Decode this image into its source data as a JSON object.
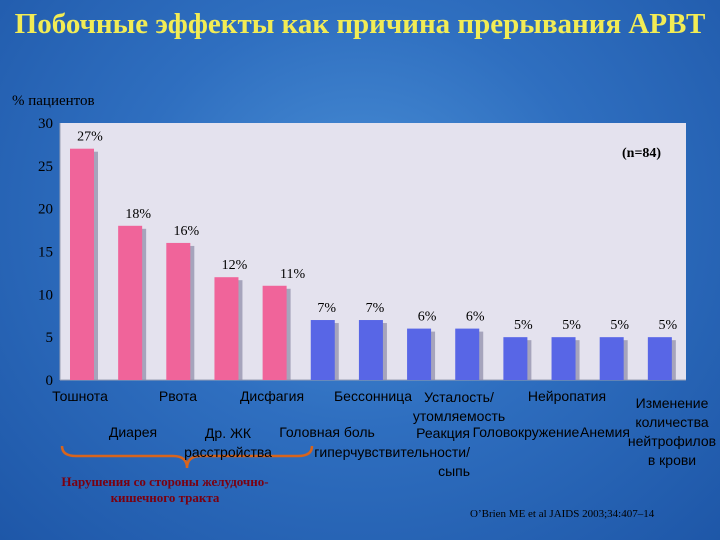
{
  "title": "Побочные эффекты как причина прерывания АРВТ",
  "ylabel": "% пациентов",
  "note_n": "(n=84)",
  "brace_label": "Нарушения со стороны желудочно-кишечного тракта",
  "citation": "O’Brien ME et al JAIDS 2003;34:407–14",
  "colors": {
    "pink": "#f0649a",
    "blue": "#5866e6",
    "title": "#f2ec55",
    "brace": "#d8641c",
    "plot": "#e4e2ee"
  },
  "chart_data": {
    "type": "bar",
    "categories": [
      "Тошнота",
      "Диарея",
      "Рвота",
      "Др. ЖК расстройства",
      "Дисфагия",
      "Головная боль",
      "Бессонница",
      "Реакция гиперчувствительности/сыпь",
      "Усталость/ утомляемость",
      "Головокружение",
      "Нейропатия",
      "Анемия",
      "Изменение количества нейтрофилов в крови"
    ],
    "values": [
      27,
      18,
      16,
      12,
      11,
      7,
      7,
      6,
      6,
      5,
      5,
      5,
      5
    ],
    "value_labels": [
      "27%",
      "18%",
      "16%",
      "12%",
      "11%",
      "7%",
      "7%",
      "6%",
      "6%",
      "5%",
      "5%",
      "5%",
      "5%"
    ],
    "bar_colors": [
      "pink",
      "pink",
      "pink",
      "pink",
      "pink",
      "blue",
      "blue",
      "blue",
      "blue",
      "blue",
      "blue",
      "blue",
      "blue"
    ],
    "ylim": [
      0,
      30
    ],
    "yticks": [
      0,
      5,
      10,
      15,
      20,
      25,
      30
    ],
    "grid": false
  }
}
